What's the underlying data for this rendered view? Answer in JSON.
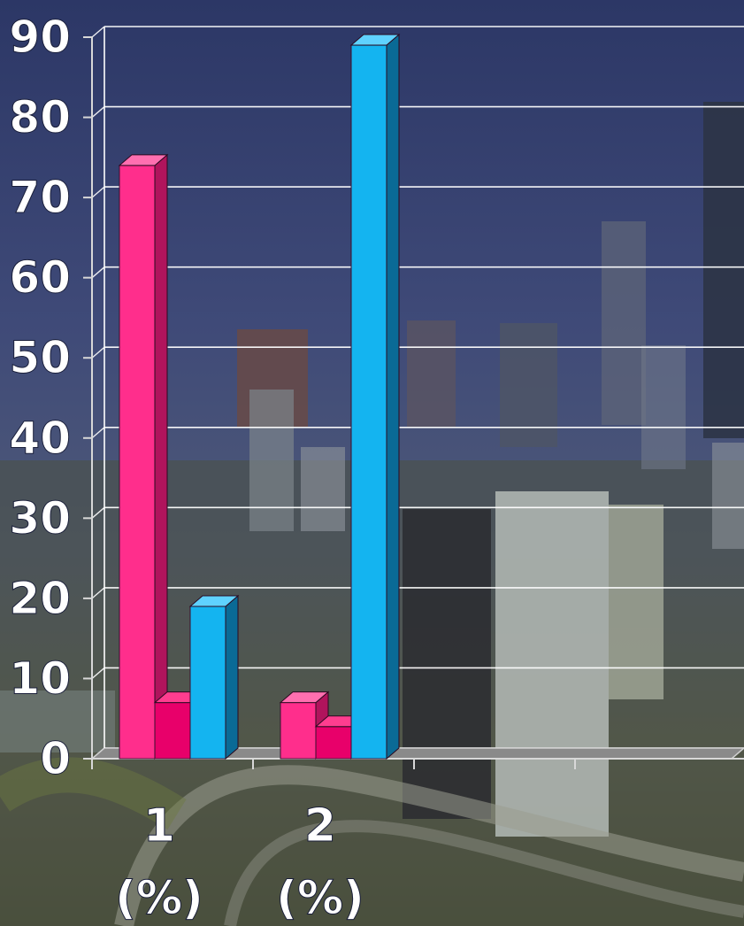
{
  "chart_data": {
    "type": "bar",
    "title": "",
    "xlabel": "",
    "ylabel": "",
    "ylim": [
      0,
      90
    ],
    "yticks": [
      "0",
      "10",
      "20",
      "30",
      "40",
      "50",
      "60",
      "70",
      "80",
      "90"
    ],
    "categories": [
      {
        "number": "1",
        "unit": "(%)"
      },
      {
        "number": "2",
        "unit": "(%)"
      }
    ],
    "series": [
      {
        "values": [
          74,
          7
        ],
        "color": "#ff2e8c",
        "side_color": "#b0145c",
        "top_color": "#ff6fb0"
      },
      {
        "values": [
          7,
          4
        ],
        "color": "#e8006a",
        "side_color": "#9a0048",
        "top_color": "#ff3d8f"
      },
      {
        "values": [
          19,
          89
        ],
        "color": "#14b4f0",
        "side_color": "#0a6a96",
        "top_color": "#5fd2ff"
      }
    ],
    "grid": true,
    "legend": "none"
  }
}
